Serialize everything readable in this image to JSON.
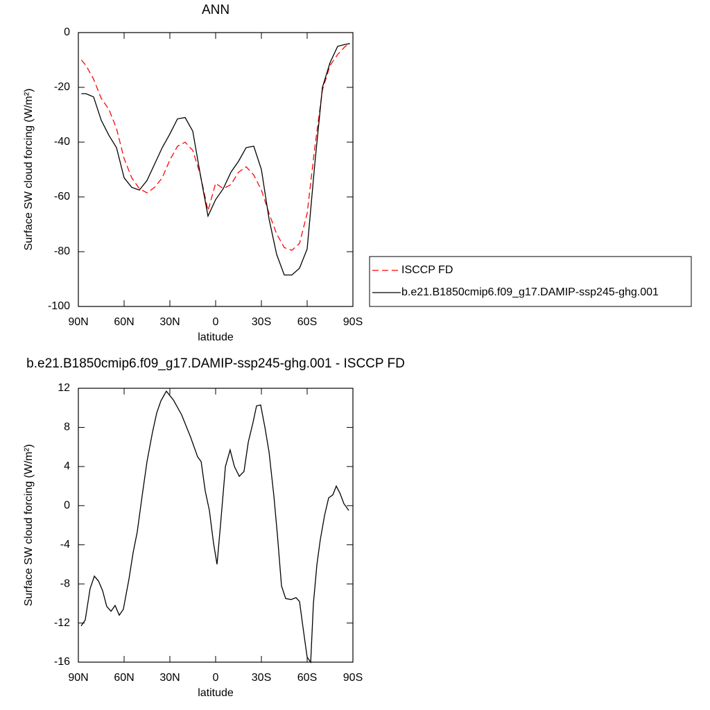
{
  "chart_data": [
    {
      "type": "line",
      "title": "ANN",
      "x_label": "latitude",
      "y_label": "Surface SW cloud forcing (W/m²)",
      "xlim": [
        90,
        -90
      ],
      "xticks": [
        {
          "value": 90,
          "label": "90N"
        },
        {
          "value": 60,
          "label": "60N"
        },
        {
          "value": 30,
          "label": "30N"
        },
        0,
        {
          "value": -30,
          "label": "30S"
        },
        {
          "value": -60,
          "label": "60S"
        },
        {
          "value": -90,
          "label": "90S"
        }
      ],
      "ylim": [
        -100,
        0
      ],
      "yticks": [
        0,
        -20,
        -40,
        -60,
        -80,
        -100
      ],
      "legend": "right",
      "x": [
        88,
        85,
        80,
        75,
        70,
        65,
        60,
        55,
        50,
        45,
        40,
        35,
        30,
        25,
        20,
        15,
        10,
        5,
        0,
        -5,
        -10,
        -15,
        -20,
        -25,
        -30,
        -35,
        -40,
        -45,
        -50,
        -55,
        -60,
        -65,
        -70,
        -75,
        -80,
        -85,
        -88
      ],
      "series": [
        {
          "name": "ISCCP FD",
          "color": "#ff0000",
          "line_style": "dashed",
          "values": [
            -10,
            -12,
            -17,
            -24,
            -28,
            -35,
            -46,
            -53,
            -57,
            -58.5,
            -56.5,
            -53,
            -46.5,
            -41.5,
            -40,
            -43,
            -52,
            -65,
            -55,
            -57,
            -55.5,
            -51,
            -49,
            -52,
            -57.5,
            -66,
            -73.5,
            -78.5,
            -79.5,
            -77,
            -66,
            -42,
            -21,
            -12,
            -8,
            -5,
            -4
          ]
        },
        {
          "name": "b.e21.B1850cmip6.f09_g17.DAMIP-ssp245-ghg.001",
          "color": "#000000",
          "line_style": "solid",
          "values": [
            -22.3,
            -22.3,
            -23.5,
            -32,
            -37.5,
            -42,
            -53,
            -56.5,
            -57.5,
            -54,
            -48,
            -42,
            -37,
            -31.5,
            -31,
            -36,
            -52,
            -67,
            -61,
            -57,
            -51,
            -47,
            -42,
            -41.5,
            -50,
            -68,
            -81,
            -88.5,
            -88.5,
            -86,
            -79,
            -48,
            -20,
            -11,
            -5,
            -4.3,
            -4
          ]
        }
      ]
    },
    {
      "type": "line",
      "title": "b.e21.B1850cmip6.f09_g17.DAMIP-ssp245-ghg.001 - ISCCP FD",
      "x_label": "latitude",
      "y_label": "Surface SW cloud forcing (W/m²)",
      "xlim": [
        90,
        -90
      ],
      "xticks": [
        {
          "value": 90,
          "label": "90N"
        },
        {
          "value": 60,
          "label": "60N"
        },
        {
          "value": 30,
          "label": "30N"
        },
        0,
        {
          "value": -30,
          "label": "30S"
        },
        {
          "value": -60,
          "label": "60S"
        },
        {
          "value": -90,
          "label": "90S"
        }
      ],
      "ylim": [
        -16,
        12
      ],
      "yticks": [
        12,
        8,
        4,
        0,
        -4,
        -8,
        -12,
        -16
      ],
      "x": [
        88.2,
        85.5,
        82.3,
        79.5,
        76.8,
        74.1,
        71.4,
        68.6,
        65.9,
        63.2,
        60.5,
        56.8,
        54.1,
        51.4,
        48.2,
        45,
        41.4,
        38.6,
        35.9,
        32.3,
        27.7,
        22.3,
        16.4,
        11.8,
        9.5,
        6.8,
        4.1,
        1.4,
        -0.9,
        -3.2,
        -6.4,
        -9.5,
        -12.3,
        -15.5,
        -18.6,
        -21.4,
        -24.5,
        -26.8,
        -29.5,
        -32.3,
        -35,
        -38.2,
        -40.5,
        -43.2,
        -45.9,
        -49.5,
        -52.7,
        -55,
        -57.3,
        -60,
        -62.3,
        -64.1,
        -66.4,
        -68.6,
        -71.4,
        -74.1,
        -76.8,
        -79.1,
        -81.4,
        -84.1,
        -87.3
      ],
      "series": [
        {
          "color": "#000000",
          "line_style": "solid",
          "values": [
            -12.3,
            -11.7,
            -8.5,
            -7.2,
            -7.7,
            -8.7,
            -10.3,
            -10.8,
            -10.2,
            -11.2,
            -10.6,
            -7.5,
            -4.8,
            -2.7,
            1,
            4.5,
            7.5,
            9.5,
            10.7,
            11.7,
            10.8,
            9.3,
            7,
            5,
            4.5,
            1.5,
            -0.5,
            -3.8,
            -6,
            -2,
            4,
            5.7,
            4,
            3,
            3.5,
            6.5,
            8.5,
            10.2,
            10.3,
            8,
            5.5,
            1,
            -3,
            -8.2,
            -9.5,
            -9.6,
            -9.4,
            -9.8,
            -12.5,
            -15.5,
            -16,
            -10,
            -6,
            -3.5,
            -1,
            0.8,
            1.1,
            2,
            1.3,
            0.2,
            -0.5
          ]
        }
      ]
    }
  ]
}
